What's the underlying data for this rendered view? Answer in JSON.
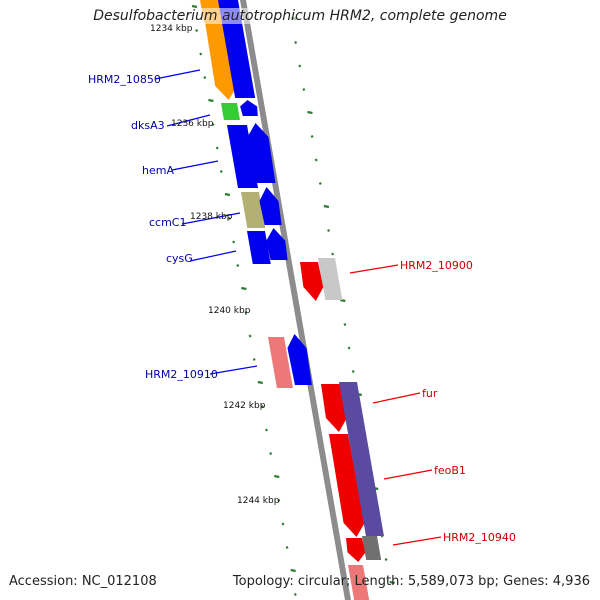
{
  "title": "Desulfobacterium autotrophicum HRM2, complete genome",
  "footer": {
    "accession": "Accession: NC_012108",
    "stats": "Topology: circular; Length: 5,589,073 bp; Genes: 4,936"
  },
  "colors": {
    "backbone": "#8c8c8c",
    "tick": "#2e7d32",
    "forward_label": "#0000aa",
    "reverse_label": "#cc0000",
    "blue": "#0000ee",
    "orange": "#ff9900",
    "green": "#33cc33",
    "olive": "#b3b073",
    "red": "#ee0000",
    "pink": "#ee7777",
    "light_gray": "#c8c8c8",
    "dark_gray": "#707070",
    "purple": "#5a4aa0"
  },
  "ticks": [
    "1234 kbp",
    "1236 kbp",
    "1238 kbp",
    "1240 kbp",
    "1242 kbp",
    "1244 kbp"
  ],
  "forward_labels": [
    "HRM2_10850",
    "dksA3",
    "hemA",
    "ccmC1",
    "cysG",
    "HRM2_10910"
  ],
  "reverse_labels": [
    "HRM2_10900",
    "fur",
    "feoB1",
    "HRM2_10940"
  ],
  "features": [
    {
      "name": "HRM2_10850",
      "strand": "forward",
      "color": "orange",
      "label": "HRM2_10850"
    },
    {
      "name": "dksA3",
      "strand": "forward",
      "color": "green",
      "label": "dksA3"
    },
    {
      "name": "hemA",
      "strand": "forward",
      "color": "blue",
      "label": "hemA"
    },
    {
      "name": "ccmC1",
      "strand": "forward",
      "color": "olive",
      "label": "ccmC1"
    },
    {
      "name": "cysG",
      "strand": "forward",
      "color": "blue",
      "label": "cysG"
    },
    {
      "name": "HRM2_10900",
      "strand": "reverse",
      "color": "red",
      "label": "HRM2_10900"
    },
    {
      "name": "HRM2_10910",
      "strand": "forward",
      "color": "pink",
      "label": "HRM2_10910"
    },
    {
      "name": "fur",
      "strand": "reverse",
      "color": "red",
      "label": "fur"
    },
    {
      "name": "feoB1",
      "strand": "reverse",
      "color": "red",
      "label": "feoB1"
    },
    {
      "name": "HRM2_10940",
      "strand": "reverse",
      "color": "red",
      "label": "HRM2_10940"
    }
  ]
}
